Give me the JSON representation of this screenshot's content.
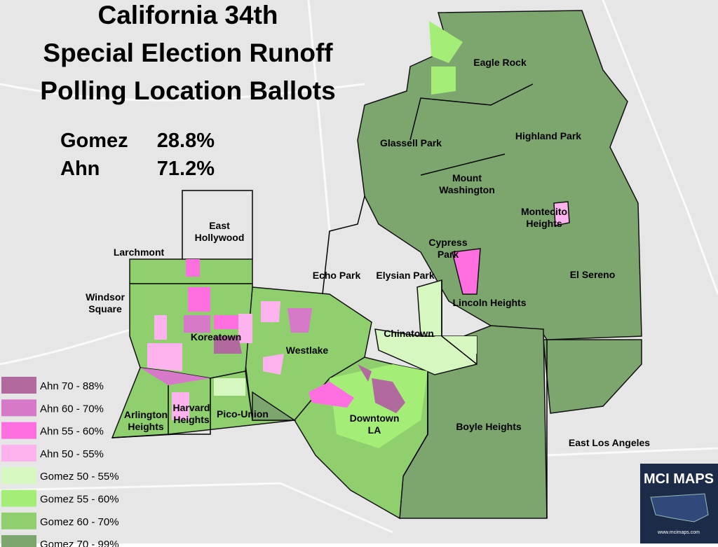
{
  "title": [
    "California 34th",
    "Special Election Runoff",
    "Polling Location Ballots"
  ],
  "results": [
    {
      "name": "Gomez",
      "value": "28.8%"
    },
    {
      "name": "Ahn",
      "value": "71.2%"
    }
  ],
  "neighborhoods": [
    {
      "lines": [
        "Eagle Rock"
      ]
    },
    {
      "lines": [
        "Glassell Park"
      ]
    },
    {
      "lines": [
        "Highland Park"
      ]
    },
    {
      "lines": [
        "Mount",
        "Washington"
      ]
    },
    {
      "lines": [
        "Montecito",
        "Heights"
      ]
    },
    {
      "lines": [
        "East",
        "Hollywood"
      ]
    },
    {
      "lines": [
        "Larchmont"
      ]
    },
    {
      "lines": [
        "Echo Park"
      ]
    },
    {
      "lines": [
        "Elysian Park"
      ]
    },
    {
      "lines": [
        "Cypress",
        "Park"
      ]
    },
    {
      "lines": [
        "El Sereno"
      ]
    },
    {
      "lines": [
        "Windsor",
        "Square"
      ]
    },
    {
      "lines": [
        "Lincoln Heights"
      ]
    },
    {
      "lines": [
        "Chinatown"
      ]
    },
    {
      "lines": [
        "Koreatown"
      ]
    },
    {
      "lines": [
        "Westlake"
      ]
    },
    {
      "lines": [
        "Arlington",
        "Heights"
      ]
    },
    {
      "lines": [
        "Harvard",
        "Heights"
      ]
    },
    {
      "lines": [
        "Pico-Union"
      ]
    },
    {
      "lines": [
        "Downtown",
        "LA"
      ]
    },
    {
      "lines": [
        "Boyle Heights"
      ]
    },
    {
      "lines": [
        "East Los Angeles"
      ]
    }
  ],
  "legend": [
    {
      "label": "Ahn 70 - 88%",
      "color": "#b06a9e"
    },
    {
      "label": "Ahn 60 - 70%",
      "color": "#d679c9"
    },
    {
      "label": "Ahn 55 - 60%",
      "color": "#ff6fe0"
    },
    {
      "label": "Ahn 50 - 55%",
      "color": "#ffb3ee"
    },
    {
      "label": "Gomez 50 - 55%",
      "color": "#d7f7c0"
    },
    {
      "label": "Gomez 55 - 60%",
      "color": "#a4ee78"
    },
    {
      "label": "Gomez 60 - 70%",
      "color": "#8fcf6e"
    },
    {
      "label": "Gomez 70 - 99%",
      "color": "#7da66f"
    }
  ],
  "logo": {
    "title": "MCI MAPS",
    "url": "www.mcimaps.com"
  }
}
